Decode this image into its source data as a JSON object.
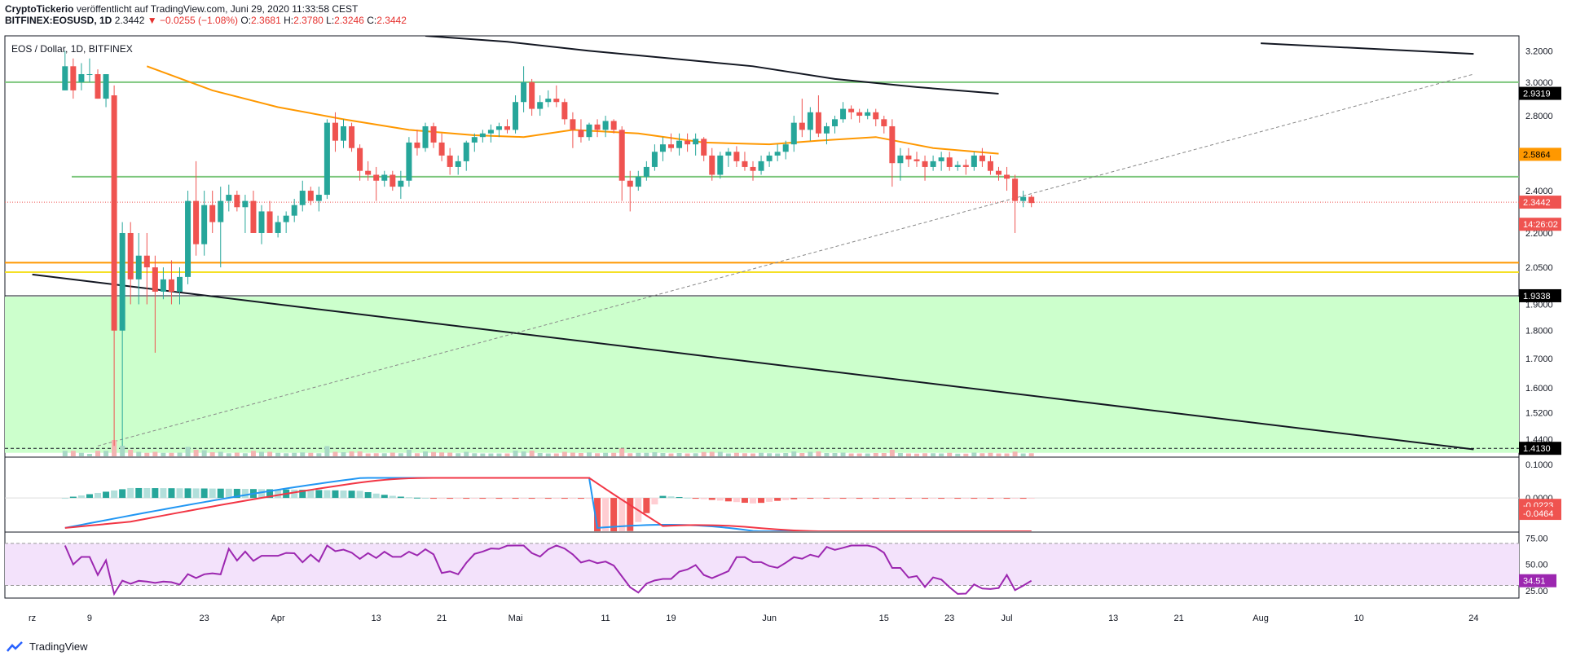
{
  "header": {
    "author": "CryptoTickerio",
    "published": "veröffentlicht auf TradingView.com, Juni 29, 2020 11:33:58 CEST",
    "symbol": "BITFINEX:EOSUSD, 1D",
    "last": "2.3442",
    "change": "▼ −0.0255 (−1.08%)",
    "o_label": "O:",
    "o_val": "2.3681",
    "h_label": "H:",
    "h_val": "2.3780",
    "l_label": "L:",
    "l_val": "2.3246",
    "c_label": "C:",
    "c_val": "2.3442"
  },
  "legend": "EOS / Dollar, 1D, BITFINEX",
  "footer": {
    "brand": "TradingView"
  },
  "colors": {
    "up": "#26a69a",
    "down": "#ef5350",
    "support": "#7cc67c",
    "orange": "#ff9800",
    "yellow": "#f5e026",
    "zone": "#ccffcc",
    "rsi_band": "#f3e2fb",
    "rsi_line": "#9c27b0",
    "macd": "#2196f3",
    "signal": "#f23645"
  },
  "price_labels": [
    {
      "text": "2.9319",
      "value": 2.9319,
      "bg": "#000000",
      "fg": "#ffffff"
    },
    {
      "text": "2.5864",
      "value": 2.5864,
      "bg": "#ff9800",
      "fg": "#000000"
    },
    {
      "text": "2.3442",
      "value": 2.3442,
      "bg": "#ef5350",
      "fg": "#ffffff"
    },
    {
      "text": "14:26:02",
      "value": 2.24,
      "bg": "#ef5350",
      "fg": "#ffffff"
    },
    {
      "text": "1.9338",
      "value": 1.9338,
      "bg": "#000000",
      "fg": "#ffffff"
    },
    {
      "text": "1.4130",
      "value": 1.413,
      "bg": "#000000",
      "fg": "#ffffff"
    }
  ],
  "macd_labels": [
    {
      "text": "-0.0223",
      "value": -0.0223,
      "bg": "#ef5350",
      "fg": "#ffffff"
    },
    {
      "text": "-0.0464",
      "value": -0.0464,
      "bg": "#ef5350",
      "fg": "#ffffff"
    }
  ],
  "rsi_labels": [
    {
      "text": "34.51",
      "value": 34.51,
      "bg": "#9c27b0",
      "fg": "#ffffff"
    }
  ],
  "chart_data": [
    {
      "type": "candlestick",
      "title": "EOS / Dollar, 1D, BITFINEX",
      "y_scale": "log",
      "y_ticks": [
        "3.2000",
        "3.0000",
        "2.8000",
        "2.6000",
        "2.4000",
        "2.2000",
        "2.0500",
        "1.9000",
        "1.8000",
        "1.7000",
        "1.6000",
        "1.5200",
        "1.4400"
      ],
      "y_tick_values": [
        3.2,
        3.0,
        2.8,
        2.6,
        2.4,
        2.2,
        2.05,
        1.9,
        1.8,
        1.7,
        1.6,
        1.52,
        1.44
      ],
      "ylim": [
        1.39,
        3.3
      ],
      "x_ticks": [
        "rz",
        "9",
        "23",
        "Apr",
        "13",
        "21",
        "Mai",
        "11",
        "19",
        "Jun",
        "15",
        "23",
        "Jul",
        "13",
        "21",
        "Aug",
        "10",
        "24"
      ],
      "x_tick_days": [
        -8,
        -1,
        13,
        22,
        34,
        42,
        51,
        62,
        70,
        82,
        96,
        104,
        111,
        124,
        132,
        142,
        154,
        168
      ],
      "x_start": "2020-03-01",
      "x_label_note": "",
      "candles": [
        [
          2.95,
          3.2,
          2.95,
          3.1
        ],
        [
          3.1,
          3.15,
          2.9,
          2.95
        ],
        [
          3.0,
          3.12,
          2.95,
          3.05
        ],
        [
          3.05,
          3.15,
          3.0,
          3.05
        ],
        [
          3.05,
          3.08,
          2.9,
          2.9
        ],
        [
          2.9,
          3.05,
          2.85,
          3.05
        ],
        [
          2.92,
          2.98,
          1.42,
          1.8
        ],
        [
          1.8,
          2.25,
          1.42,
          2.2
        ],
        [
          2.2,
          2.25,
          1.9,
          2.0
        ],
        [
          2.0,
          2.2,
          1.9,
          2.1
        ],
        [
          2.1,
          2.2,
          1.9,
          2.05
        ],
        [
          2.05,
          2.1,
          1.72,
          1.95
        ],
        [
          1.95,
          2.05,
          1.92,
          2.0
        ],
        [
          2.0,
          2.08,
          1.9,
          1.95
        ],
        [
          1.95,
          2.05,
          1.9,
          2.01
        ],
        [
          2.01,
          2.4,
          1.98,
          2.35
        ],
        [
          2.35,
          2.55,
          2.1,
          2.15
        ],
        [
          2.15,
          2.4,
          2.1,
          2.33
        ],
        [
          2.33,
          2.4,
          2.2,
          2.25
        ],
        [
          2.25,
          2.42,
          2.05,
          2.35
        ],
        [
          2.35,
          2.43,
          2.3,
          2.38
        ],
        [
          2.38,
          2.4,
          2.3,
          2.32
        ],
        [
          2.32,
          2.38,
          2.2,
          2.35
        ],
        [
          2.35,
          2.4,
          2.2,
          2.2
        ],
        [
          2.2,
          2.33,
          2.15,
          2.3
        ],
        [
          2.3,
          2.35,
          2.2,
          2.2
        ],
        [
          2.2,
          2.28,
          2.18,
          2.25
        ],
        [
          2.25,
          2.3,
          2.2,
          2.28
        ],
        [
          2.28,
          2.36,
          2.25,
          2.33
        ],
        [
          2.33,
          2.45,
          2.3,
          2.4
        ],
        [
          2.4,
          2.42,
          2.33,
          2.35
        ],
        [
          2.35,
          2.42,
          2.3,
          2.38
        ],
        [
          2.38,
          2.78,
          2.36,
          2.76
        ],
        [
          2.76,
          2.82,
          2.6,
          2.66
        ],
        [
          2.66,
          2.78,
          2.62,
          2.74
        ],
        [
          2.74,
          2.76,
          2.6,
          2.62
        ],
        [
          2.62,
          2.64,
          2.45,
          2.5
        ],
        [
          2.5,
          2.55,
          2.45,
          2.48
        ],
        [
          2.48,
          2.52,
          2.35,
          2.45
        ],
        [
          2.45,
          2.5,
          2.42,
          2.48
        ],
        [
          2.48,
          2.5,
          2.4,
          2.42
        ],
        [
          2.42,
          2.5,
          2.36,
          2.45
        ],
        [
          2.45,
          2.68,
          2.42,
          2.65
        ],
        [
          2.65,
          2.72,
          2.58,
          2.62
        ],
        [
          2.62,
          2.76,
          2.6,
          2.74
        ],
        [
          2.74,
          2.76,
          2.62,
          2.65
        ],
        [
          2.65,
          2.7,
          2.55,
          2.58
        ],
        [
          2.58,
          2.62,
          2.48,
          2.52
        ],
        [
          2.52,
          2.58,
          2.48,
          2.55
        ],
        [
          2.55,
          2.66,
          2.5,
          2.65
        ],
        [
          2.65,
          2.7,
          2.6,
          2.68
        ],
        [
          2.68,
          2.72,
          2.65,
          2.7
        ],
        [
          2.7,
          2.75,
          2.65,
          2.72
        ],
        [
          2.72,
          2.76,
          2.68,
          2.74
        ],
        [
          2.74,
          2.78,
          2.7,
          2.72
        ],
        [
          2.72,
          2.92,
          2.7,
          2.88
        ],
        [
          2.88,
          3.1,
          2.82,
          3.0
        ],
        [
          3.0,
          3.02,
          2.8,
          2.84
        ],
        [
          2.84,
          2.92,
          2.8,
          2.88
        ],
        [
          2.88,
          2.95,
          2.85,
          2.9
        ],
        [
          2.9,
          2.98,
          2.85,
          2.88
        ],
        [
          2.88,
          2.9,
          2.75,
          2.78
        ],
        [
          2.78,
          2.82,
          2.62,
          2.72
        ],
        [
          2.72,
          2.78,
          2.65,
          2.68
        ],
        [
          2.68,
          2.76,
          2.66,
          2.75
        ],
        [
          2.75,
          2.78,
          2.68,
          2.72
        ],
        [
          2.72,
          2.8,
          2.68,
          2.77
        ],
        [
          2.77,
          2.78,
          2.7,
          2.72
        ],
        [
          2.72,
          2.74,
          2.35,
          2.45
        ],
        [
          2.45,
          2.5,
          2.3,
          2.42
        ],
        [
          2.42,
          2.5,
          2.4,
          2.47
        ],
        [
          2.47,
          2.55,
          2.45,
          2.52
        ],
        [
          2.52,
          2.64,
          2.5,
          2.6
        ],
        [
          2.6,
          2.68,
          2.55,
          2.64
        ],
        [
          2.64,
          2.7,
          2.6,
          2.62
        ],
        [
          2.62,
          2.7,
          2.58,
          2.66
        ],
        [
          2.66,
          2.7,
          2.6,
          2.64
        ],
        [
          2.64,
          2.7,
          2.58,
          2.67
        ],
        [
          2.67,
          2.68,
          2.55,
          2.58
        ],
        [
          2.58,
          2.62,
          2.45,
          2.48
        ],
        [
          2.48,
          2.6,
          2.46,
          2.58
        ],
        [
          2.58,
          2.62,
          2.52,
          2.6
        ],
        [
          2.6,
          2.63,
          2.52,
          2.55
        ],
        [
          2.55,
          2.6,
          2.5,
          2.52
        ],
        [
          2.52,
          2.55,
          2.45,
          2.5
        ],
        [
          2.5,
          2.58,
          2.48,
          2.55
        ],
        [
          2.55,
          2.6,
          2.52,
          2.58
        ],
        [
          2.58,
          2.64,
          2.55,
          2.6
        ],
        [
          2.6,
          2.66,
          2.56,
          2.64
        ],
        [
          2.64,
          2.8,
          2.6,
          2.76
        ],
        [
          2.76,
          2.9,
          2.68,
          2.72
        ],
        [
          2.72,
          2.85,
          2.66,
          2.82
        ],
        [
          2.82,
          2.92,
          2.68,
          2.7
        ],
        [
          2.7,
          2.76,
          2.64,
          2.74
        ],
        [
          2.74,
          2.8,
          2.7,
          2.78
        ],
        [
          2.78,
          2.88,
          2.76,
          2.84
        ],
        [
          2.84,
          2.86,
          2.78,
          2.82
        ],
        [
          2.82,
          2.84,
          2.76,
          2.8
        ],
        [
          2.8,
          2.84,
          2.78,
          2.82
        ],
        [
          2.82,
          2.84,
          2.74,
          2.78
        ],
        [
          2.78,
          2.8,
          2.7,
          2.74
        ],
        [
          2.74,
          2.78,
          2.42,
          2.54
        ],
        [
          2.54,
          2.62,
          2.45,
          2.58
        ],
        [
          2.58,
          2.62,
          2.52,
          2.56
        ],
        [
          2.56,
          2.6,
          2.52,
          2.55
        ],
        [
          2.55,
          2.58,
          2.45,
          2.52
        ],
        [
          2.52,
          2.58,
          2.5,
          2.55
        ],
        [
          2.55,
          2.6,
          2.5,
          2.57
        ],
        [
          2.57,
          2.6,
          2.5,
          2.52
        ],
        [
          2.52,
          2.55,
          2.5,
          2.53
        ],
        [
          2.53,
          2.56,
          2.48,
          2.52
        ],
        [
          2.52,
          2.6,
          2.5,
          2.58
        ],
        [
          2.58,
          2.62,
          2.52,
          2.55
        ],
        [
          2.55,
          2.58,
          2.48,
          2.5
        ],
        [
          2.5,
          2.52,
          2.45,
          2.48
        ],
        [
          2.48,
          2.52,
          2.4,
          2.46
        ],
        [
          2.46,
          2.48,
          2.2,
          2.35
        ],
        [
          2.35,
          2.4,
          2.32,
          2.37
        ],
        [
          2.37,
          2.38,
          2.32,
          2.34
        ]
      ],
      "ma50": [
        [
          6,
          3.1
        ],
        [
          14,
          2.95
        ],
        [
          22,
          2.85
        ],
        [
          30,
          2.78
        ],
        [
          38,
          2.72
        ],
        [
          46,
          2.69
        ],
        [
          52,
          2.68
        ],
        [
          58,
          2.72
        ],
        [
          66,
          2.7
        ],
        [
          74,
          2.65
        ],
        [
          82,
          2.64
        ],
        [
          88,
          2.66
        ],
        [
          95,
          2.68
        ],
        [
          102,
          2.62
        ],
        [
          110,
          2.59
        ]
      ],
      "ma200": [
        [
          40,
          3.3
        ],
        [
          50,
          3.26
        ],
        [
          60,
          3.2
        ],
        [
          70,
          3.15
        ],
        [
          80,
          3.1
        ],
        [
          90,
          3.02
        ],
        [
          100,
          2.97
        ],
        [
          110,
          2.93
        ]
      ],
      "horizontal_levels": [
        {
          "value": 3.0,
          "color": "green"
        },
        {
          "value": 2.47,
          "color": "green"
        },
        {
          "value": 2.07,
          "color": "orange"
        },
        {
          "value": 2.03,
          "color": "yellow"
        },
        {
          "value": 1.9338,
          "color": "black"
        },
        {
          "value": 1.413,
          "color": "black-dashed"
        }
      ],
      "trendlines": [
        {
          "from": [
            -8,
            2.02
          ],
          "to": [
            168,
            1.41
          ],
          "style": "solid"
        },
        {
          "from": [
            142,
            3.25
          ],
          "to": [
            168,
            3.18
          ],
          "style": "solid"
        },
        {
          "from": [
            0,
            1.42
          ],
          "to": [
            168,
            3.05
          ],
          "style": "dashed"
        }
      ],
      "support_zone": [
        1.4,
        1.93
      ],
      "current_price": 2.3442
    },
    {
      "type": "histogram",
      "title": "MACD",
      "y_ticks": [
        "0.1000",
        "0.0000"
      ],
      "y_tick_values": [
        0.1,
        0.0
      ],
      "ylim": [
        -0.1,
        0.12
      ],
      "macd_last": -0.0464,
      "signal_last": -0.0223
    },
    {
      "type": "line",
      "title": "RSI",
      "y_ticks": [
        "75.00",
        "50.00",
        "25.00"
      ],
      "y_tick_values": [
        75,
        50,
        25
      ],
      "ylim": [
        18,
        80
      ],
      "band": [
        30,
        70
      ],
      "last": 34.51
    }
  ]
}
